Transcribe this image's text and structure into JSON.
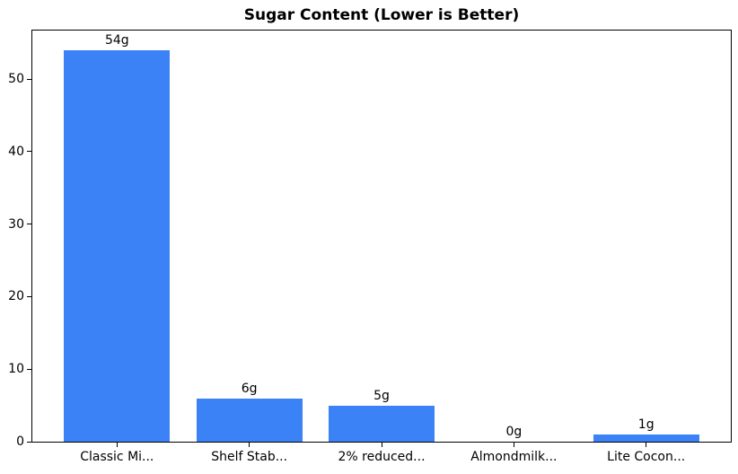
{
  "chart_data": {
    "type": "bar",
    "title": "Sugar Content (Lower is Better)",
    "categories": [
      "Classic Mi...",
      "Shelf Stab...",
      "2% reduced...",
      "Almondmilk...",
      "Lite Cocon..."
    ],
    "values": [
      54,
      6,
      5,
      0,
      1
    ],
    "value_labels": [
      "54g",
      "6g",
      "5g",
      "0g",
      "1g"
    ],
    "xlabel": "",
    "ylabel": "",
    "yticks": [
      0,
      10,
      20,
      30,
      40,
      50
    ],
    "ylim": [
      0,
      56.7
    ],
    "bar_color": "#3b82f6",
    "spine_color": "#000000",
    "background_color": "#ffffff",
    "grid": false,
    "legend_position": "none",
    "bar_width_fraction": 0.8
  }
}
